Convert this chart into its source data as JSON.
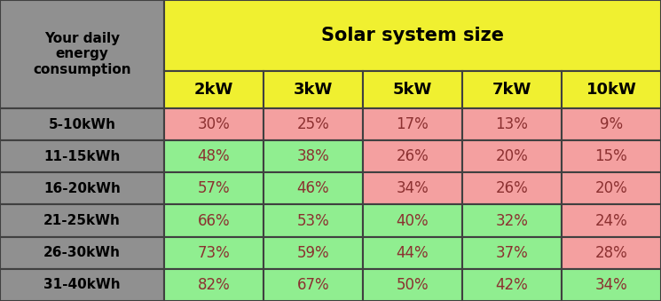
{
  "header_top_left": "Your daily\nenergy\nconsumption",
  "header_top_right": "Solar system size",
  "col_headers": [
    "2kW",
    "3kW",
    "5kW",
    "7kW",
    "10kW"
  ],
  "row_headers": [
    "5-10kWh",
    "11-15kWh",
    "16-20kWh",
    "21-25kWh",
    "26-30kWh",
    "31-40kWh"
  ],
  "data": [
    [
      "30%",
      "25%",
      "17%",
      "13%",
      "9%"
    ],
    [
      "48%",
      "38%",
      "26%",
      "20%",
      "15%"
    ],
    [
      "57%",
      "46%",
      "34%",
      "26%",
      "20%"
    ],
    [
      "66%",
      "53%",
      "40%",
      "32%",
      "24%"
    ],
    [
      "73%",
      "59%",
      "44%",
      "37%",
      "28%"
    ],
    [
      "82%",
      "67%",
      "50%",
      "42%",
      "34%"
    ]
  ],
  "cell_colors": [
    [
      "#F4A0A0",
      "#F4A0A0",
      "#F4A0A0",
      "#F4A0A0",
      "#F4A0A0"
    ],
    [
      "#90EE90",
      "#90EE90",
      "#F4A0A0",
      "#F4A0A0",
      "#F4A0A0"
    ],
    [
      "#90EE90",
      "#90EE90",
      "#F4A0A0",
      "#F4A0A0",
      "#F4A0A0"
    ],
    [
      "#90EE90",
      "#90EE90",
      "#90EE90",
      "#90EE90",
      "#F4A0A0"
    ],
    [
      "#90EE90",
      "#90EE90",
      "#90EE90",
      "#90EE90",
      "#F4A0A0"
    ],
    [
      "#90EE90",
      "#90EE90",
      "#90EE90",
      "#90EE90",
      "#90EE90"
    ]
  ],
  "header_bg_color": "#F0F030",
  "row_header_bg_color": "#909090",
  "border_color": "#404040",
  "text_color_data": "#8B3030",
  "text_color_header": "#000000",
  "figsize": [
    7.45,
    3.39
  ],
  "dpi": 100
}
